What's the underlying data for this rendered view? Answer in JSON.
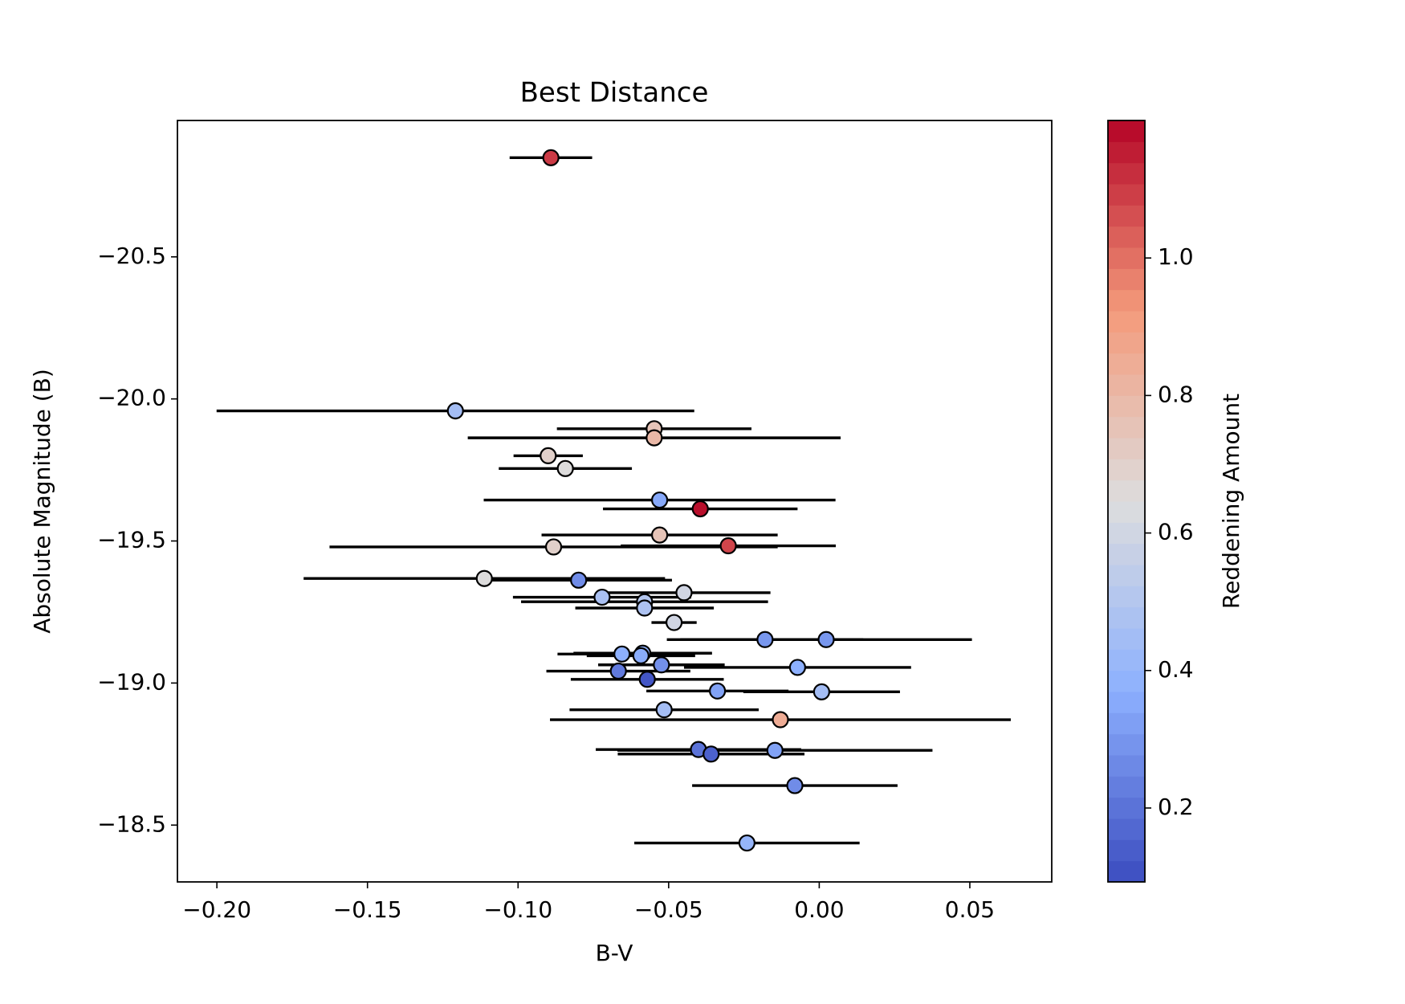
{
  "chart_data": {
    "type": "scatter",
    "title": "Best Distance",
    "x_label": "B-V",
    "y_label": "Absolute Magnitude (B)",
    "colorbar_label": "Reddening Amount",
    "colormap": "coolwarm",
    "invert_y": true,
    "grid": false,
    "xlim": [
      -0.2131,
      0.0772
    ],
    "ylim": [
      -20.98,
      -18.3
    ],
    "clim": [
      0.0925,
      1.2
    ],
    "xticks": [
      {
        "value": -0.2,
        "label": "−0.20"
      },
      {
        "value": -0.15,
        "label": "−0.15"
      },
      {
        "value": -0.1,
        "label": "−0.10"
      },
      {
        "value": -0.05,
        "label": "−0.05"
      },
      {
        "value": 0,
        "label": "0.00"
      },
      0.05
    ],
    "yticks": [
      {
        "value": -20.5,
        "label": "−20.5"
      },
      {
        "value": -20,
        "label": "−20.0"
      },
      {
        "value": -19.5,
        "label": "−19.5"
      },
      {
        "value": -19,
        "label": "−19.0"
      },
      {
        "value": -18.5,
        "label": "−18.5"
      }
    ],
    "cticks": [
      0.2,
      0.4,
      0.6,
      0.8,
      {
        "value": 1,
        "label": "1.0"
      }
    ],
    "x": [
      -0.0891,
      -0.1208,
      -0.0548,
      -0.0548,
      -0.09,
      -0.0843,
      -0.053,
      -0.0395,
      -0.053,
      -0.0302,
      -0.0882,
      -0.1112,
      -0.0799,
      -0.0449,
      -0.0721,
      -0.058,
      -0.058,
      -0.0482,
      -0.018,
      0.0023,
      -0.0586,
      -0.0655,
      -0.0592,
      -0.0524,
      -0.0072,
      -0.0667,
      -0.0571,
      -0.0338,
      0.0008,
      -0.0515,
      -0.0129,
      -0.0401,
      -0.0147,
      -0.0359,
      -0.0081,
      -0.024
    ],
    "y": [
      -20.849,
      -19.958,
      -19.895,
      -19.863,
      -19.8,
      -19.755,
      -19.644,
      -19.613,
      -19.521,
      -19.483,
      -19.479,
      -19.368,
      -19.362,
      -19.318,
      -19.302,
      -19.286,
      -19.264,
      -19.213,
      -19.153,
      -19.153,
      -19.105,
      -19.102,
      -19.096,
      -19.064,
      -19.055,
      -19.042,
      -19.013,
      -18.972,
      -18.969,
      -18.906,
      -18.871,
      -18.766,
      -18.763,
      -18.75,
      -18.639,
      -18.437
    ],
    "xerr": [
      0.0137,
      0.0793,
      0.0323,
      0.0619,
      0.0115,
      0.0221,
      0.0584,
      0.0323,
      0.0392,
      0.0357,
      0.0744,
      0.06,
      0.031,
      0.0287,
      0.0296,
      0.041,
      0.023,
      0.0075,
      0.0326,
      0.0484,
      0.023,
      0.0214,
      0.018,
      0.021,
      0.0377,
      0.0239,
      0.0254,
      0.0236,
      0.026,
      0.0314,
      0.0765,
      0.0341,
      0.0523,
      0.031,
      0.0341,
      0.0374
    ],
    "yerr": [
      0.005,
      0.03,
      0.005,
      0.02,
      0.005,
      0.005,
      0.005,
      0.005,
      0.005,
      0.005,
      0.025,
      0.015,
      0.005,
      0.005,
      0.005,
      0.005,
      0.005,
      0.005,
      0.005,
      0.01,
      0.005,
      0.005,
      0.005,
      0.005,
      0.005,
      0.005,
      0.005,
      0.005,
      0.005,
      0.005,
      0.005,
      0.005,
      0.005,
      0.005,
      0.005,
      0.005
    ],
    "reddening": [
      1.1,
      0.45,
      0.75,
      0.8,
      0.7,
      0.65,
      0.35,
      1.18,
      0.75,
      1.08,
      0.7,
      0.65,
      0.27,
      0.6,
      0.47,
      0.5,
      0.48,
      0.6,
      0.3,
      0.3,
      0.38,
      0.37,
      0.36,
      0.28,
      0.37,
      0.22,
      0.12,
      0.33,
      0.45,
      0.45,
      0.85,
      0.2,
      0.33,
      0.15,
      0.27,
      0.4
    ]
  }
}
